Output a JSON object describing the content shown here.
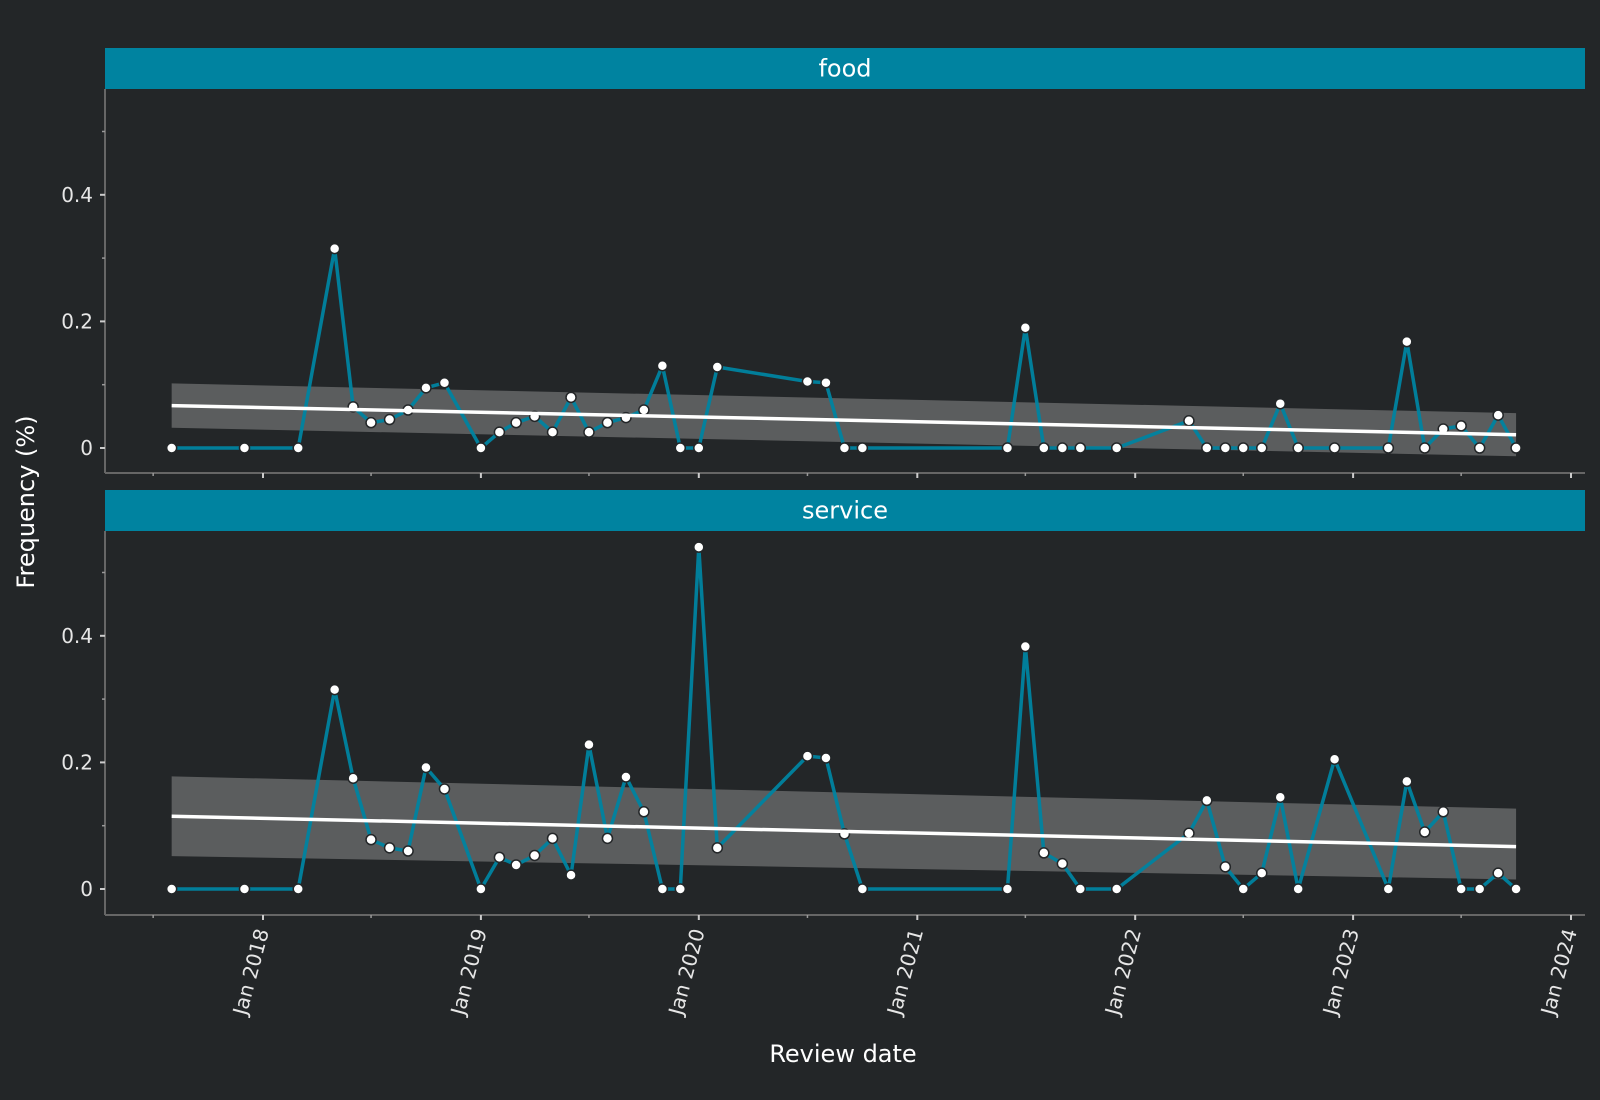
{
  "colors": {
    "background": "#232628",
    "strip": "#0083a0",
    "line": "#0083a0",
    "point_fill": "#ffffff",
    "trend": "#ffffff",
    "band": "#8a8a8a",
    "axis": "#666666"
  },
  "chart_data": {
    "type": "line",
    "facet_direction": "vertical",
    "xlabel": "Review date",
    "ylabel": "Frequency (%)",
    "x_ticks": [
      "Jan 2018",
      "Jan 2019",
      "Jan 2020",
      "Jan 2021",
      "Jan 2022",
      "Jan 2023",
      "Jan 2024"
    ],
    "x_tick_dates": [
      "2018-01-01",
      "2019-01-01",
      "2020-01-01",
      "2021-01-01",
      "2022-01-01",
      "2023-01-01",
      "2024-01-01"
    ],
    "xlim": [
      "2017-05-01",
      "2024-01-15"
    ],
    "y_ticks": [
      "0",
      "0.2",
      "0.4"
    ],
    "y_tick_values": [
      0,
      0.2,
      0.4
    ],
    "ylim": [
      -0.04,
      0.56
    ],
    "x": [
      "2017-08-01",
      "2017-12-01",
      "2018-03-01",
      "2018-05-01",
      "2018-06-01",
      "2018-07-01",
      "2018-08-01",
      "2018-09-01",
      "2018-10-01",
      "2018-11-01",
      "2019-01-01",
      "2019-02-01",
      "2019-03-01",
      "2019-04-01",
      "2019-05-01",
      "2019-06-01",
      "2019-07-01",
      "2019-08-01",
      "2019-09-01",
      "2019-10-01",
      "2019-11-01",
      "2019-12-01",
      "2020-01-01",
      "2020-02-01",
      "2020-07-01",
      "2020-08-01",
      "2020-09-01",
      "2020-10-01",
      "2021-06-01",
      "2021-07-01",
      "2021-08-01",
      "2021-09-01",
      "2021-10-01",
      "2021-12-01",
      "2022-04-01",
      "2022-05-01",
      "2022-06-01",
      "2022-07-01",
      "2022-08-01",
      "2022-09-01",
      "2022-10-01",
      "2022-12-01",
      "2023-03-01",
      "2023-04-01",
      "2023-05-01",
      "2023-06-01",
      "2023-07-01",
      "2023-08-01",
      "2023-09-01",
      "2023-10-01"
    ],
    "panels": [
      {
        "label": "food",
        "values": [
          0,
          0,
          0,
          0.315,
          0.065,
          0.04,
          0.045,
          0.06,
          0.095,
          0.103,
          0,
          0.025,
          0.04,
          0.05,
          0.025,
          0.08,
          0.025,
          0.04,
          0.048,
          0.06,
          0.13,
          0,
          0,
          0.128,
          0.105,
          0.103,
          0,
          0,
          0,
          0.19,
          0,
          0,
          0,
          0,
          0.043,
          0,
          0,
          0,
          0,
          0.07,
          0,
          0,
          0,
          0.168,
          0,
          0.03,
          0.035,
          0,
          0.052,
          0
        ],
        "trend": {
          "start": 0.067,
          "end": 0.021
        },
        "band": {
          "start": [
            0.032,
            0.102
          ],
          "end": [
            -0.013,
            0.055
          ]
        }
      },
      {
        "label": "service",
        "values": [
          0,
          0,
          0,
          0.315,
          0.175,
          0.078,
          0.065,
          0.06,
          0.192,
          0.158,
          0,
          0.05,
          0.038,
          0.053,
          0.08,
          0.022,
          0.228,
          0.08,
          0.177,
          0.122,
          0,
          0,
          0.54,
          0.065,
          0.21,
          0.207,
          0.087,
          0,
          0,
          0.383,
          0.057,
          0.04,
          0,
          0,
          0.088,
          0.14,
          0.035,
          0,
          0.025,
          0.145,
          0,
          0.205,
          0,
          0.17,
          0.09,
          0.122,
          0,
          0,
          0.025,
          0
        ],
        "trend": {
          "start": 0.115,
          "end": 0.067
        },
        "band": {
          "start": [
            0.052,
            0.178
          ],
          "end": [
            0.015,
            0.127
          ]
        }
      }
    ]
  }
}
